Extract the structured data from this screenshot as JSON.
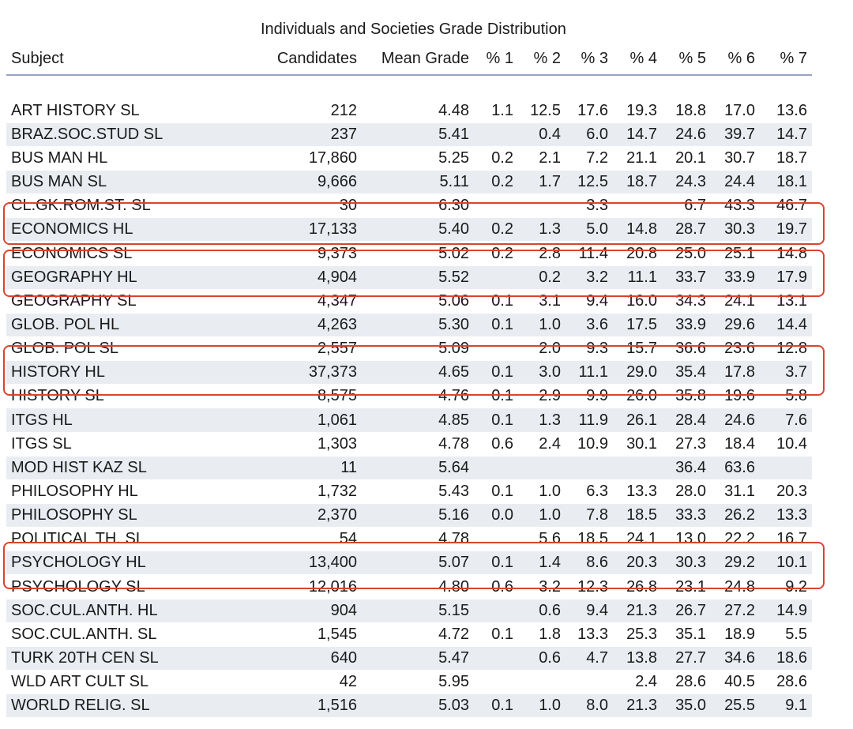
{
  "caption": "Individuals and Societies Grade Distribution",
  "columns": [
    "Subject",
    "Candidates",
    "Mean Grade",
    "% 1",
    "% 2",
    "% 3",
    "% 4",
    "% 5",
    "% 6",
    "% 7"
  ],
  "rows": [
    [
      "ART HISTORY SL",
      "212",
      "4.48",
      "1.1",
      "12.5",
      "17.6",
      "19.3",
      "18.8",
      "17.0",
      "13.6"
    ],
    [
      "BRAZ.SOC.STUD SL",
      "237",
      "5.41",
      "",
      "0.4",
      "6.0",
      "14.7",
      "24.6",
      "39.7",
      "14.7"
    ],
    [
      "BUS MAN HL",
      "17,860",
      "5.25",
      "0.2",
      "2.1",
      "7.2",
      "21.1",
      "20.1",
      "30.7",
      "18.7"
    ],
    [
      "BUS MAN SL",
      "9,666",
      "5.11",
      "0.2",
      "1.7",
      "12.5",
      "18.7",
      "24.3",
      "24.4",
      "18.1"
    ],
    [
      "CL.GK.ROM.ST. SL",
      "30",
      "6.30",
      "",
      "",
      "3.3",
      "",
      "6.7",
      "43.3",
      "46.7"
    ],
    [
      "ECONOMICS HL",
      "17,133",
      "5.40",
      "0.2",
      "1.3",
      "5.0",
      "14.8",
      "28.7",
      "30.3",
      "19.7"
    ],
    [
      "ECONOMICS SL",
      "9,373",
      "5.02",
      "0.2",
      "2.8",
      "11.4",
      "20.8",
      "25.0",
      "25.1",
      "14.8"
    ],
    [
      "GEOGRAPHY HL",
      "4,904",
      "5.52",
      "",
      "0.2",
      "3.2",
      "11.1",
      "33.7",
      "33.9",
      "17.9"
    ],
    [
      "GEOGRAPHY SL",
      "4,347",
      "5.06",
      "0.1",
      "3.1",
      "9.4",
      "16.0",
      "34.3",
      "24.1",
      "13.1"
    ],
    [
      "GLOB. POL HL",
      "4,263",
      "5.30",
      "0.1",
      "1.0",
      "3.6",
      "17.5",
      "33.9",
      "29.6",
      "14.4"
    ],
    [
      "GLOB. POL SL",
      "2,557",
      "5.09",
      "",
      "2.0",
      "9.3",
      "15.7",
      "36.6",
      "23.6",
      "12.8"
    ],
    [
      "HISTORY HL",
      "37,373",
      "4.65",
      "0.1",
      "3.0",
      "11.1",
      "29.0",
      "35.4",
      "17.8",
      "3.7"
    ],
    [
      "HISTORY SL",
      "8,575",
      "4.76",
      "0.1",
      "2.9",
      "9.9",
      "26.0",
      "35.8",
      "19.6",
      "5.8"
    ],
    [
      "ITGS HL",
      "1,061",
      "4.85",
      "0.1",
      "1.3",
      "11.9",
      "26.1",
      "28.4",
      "24.6",
      "7.6"
    ],
    [
      "ITGS SL",
      "1,303",
      "4.78",
      "0.6",
      "2.4",
      "10.9",
      "30.1",
      "27.3",
      "18.4",
      "10.4"
    ],
    [
      "MOD HIST KAZ SL",
      "11",
      "5.64",
      "",
      "",
      "",
      "",
      "36.4",
      "63.6",
      ""
    ],
    [
      "PHILOSOPHY HL",
      "1,732",
      "5.43",
      "0.1",
      "1.0",
      "6.3",
      "13.3",
      "28.0",
      "31.1",
      "20.3"
    ],
    [
      "PHILOSOPHY SL",
      "2,370",
      "5.16",
      "0.0",
      "1.0",
      "7.8",
      "18.5",
      "33.3",
      "26.2",
      "13.3"
    ],
    [
      "POLITICAL TH. SL",
      "54",
      "4.78",
      "",
      "5.6",
      "18.5",
      "24.1",
      "13.0",
      "22.2",
      "16.7"
    ],
    [
      "PSYCHOLOGY HL",
      "13,400",
      "5.07",
      "0.1",
      "1.4",
      "8.6",
      "20.3",
      "30.3",
      "29.2",
      "10.1"
    ],
    [
      "PSYCHOLOGY SL",
      "12,016",
      "4.80",
      "0.6",
      "3.2",
      "12.3",
      "26.8",
      "23.1",
      "24.8",
      "9.2"
    ],
    [
      "SOC.CUL.ANTH. HL",
      "904",
      "5.15",
      "",
      "0.6",
      "9.4",
      "21.3",
      "26.7",
      "27.2",
      "14.9"
    ],
    [
      "SOC.CUL.ANTH. SL",
      "1,545",
      "4.72",
      "0.1",
      "1.8",
      "13.3",
      "25.3",
      "35.1",
      "18.9",
      "5.5"
    ],
    [
      "TURK 20TH CEN SL",
      "640",
      "5.47",
      "",
      "0.6",
      "4.7",
      "13.8",
      "27.7",
      "34.6",
      "18.6"
    ],
    [
      "WLD ART CULT SL",
      "42",
      "5.95",
      "",
      "",
      "",
      "2.4",
      "28.6",
      "40.5",
      "28.6"
    ],
    [
      "WORLD RELIG. SL",
      "1,516",
      "5.03",
      "0.1",
      "1.0",
      "8.0",
      "21.3",
      "35.0",
      "25.5",
      "9.1"
    ]
  ],
  "highlight_color": "#d9442f"
}
